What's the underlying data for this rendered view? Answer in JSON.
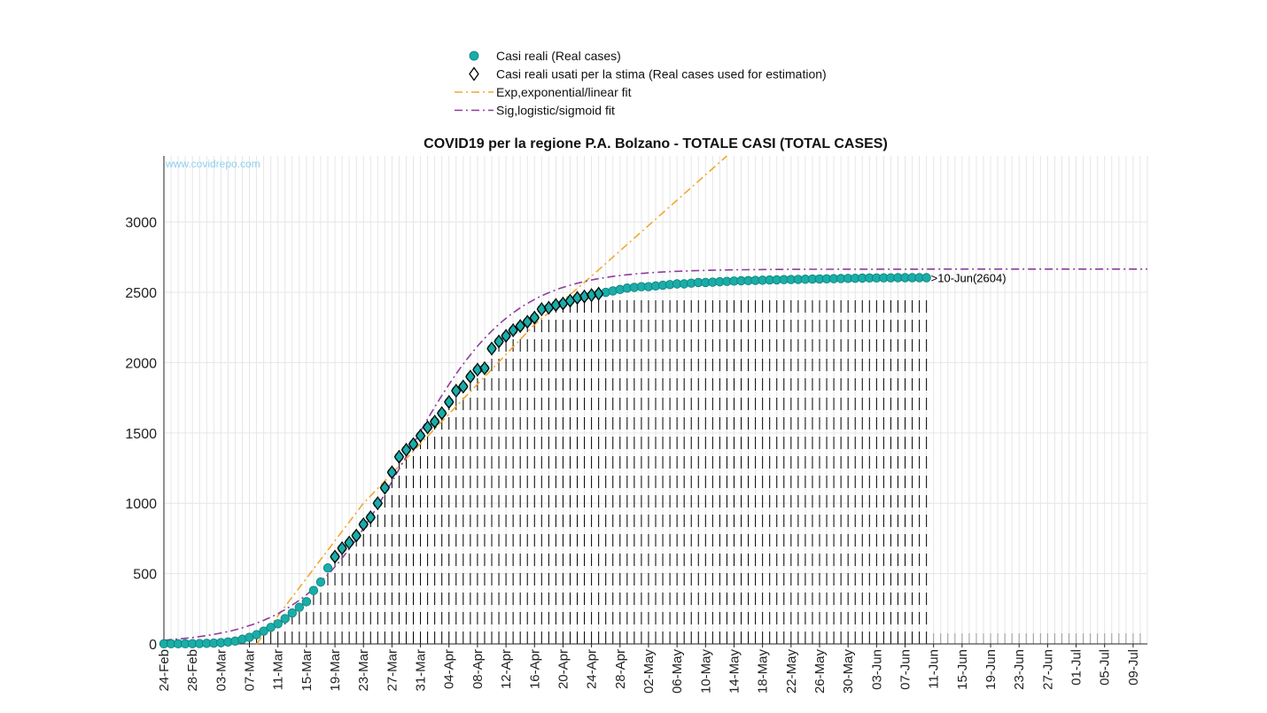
{
  "chart_data": {
    "type": "line",
    "title": "COVID19 per la regione P.A. Bolzano - TOTALE CASI (TOTAL CASES)",
    "watermark": "www.covidrepo.com",
    "xlabel": "",
    "ylabel": "",
    "x_start_date": "2020-02-24",
    "xlim": [
      "2020-02-24",
      "2020-07-11"
    ],
    "ylim": [
      0,
      3470
    ],
    "yticks": [
      0,
      500,
      1000,
      1500,
      2000,
      2500,
      3000
    ],
    "xtick_labels": [
      "24-Feb",
      "28-Feb",
      "03-Mar",
      "07-Mar",
      "11-Mar",
      "15-Mar",
      "19-Mar",
      "23-Mar",
      "27-Mar",
      "31-Mar",
      "04-Apr",
      "08-Apr",
      "12-Apr",
      "16-Apr",
      "20-Apr",
      "24-Apr",
      "28-Apr",
      "02-May",
      "06-May",
      "10-May",
      "14-May",
      "18-May",
      "22-May",
      "26-May",
      "30-May",
      "03-Jun",
      "07-Jun",
      "11-Jun",
      "15-Jun",
      "19-Jun",
      "23-Jun",
      "27-Jun",
      "01-Jul",
      "05-Jul",
      "09-Jul"
    ],
    "grid": true,
    "legend_position": "top-center",
    "annotation": ">10-Jun(2604)",
    "series": [
      {
        "name": "Casi reali (Real cases)",
        "kind": "scatter-circle",
        "color": "#1aada8",
        "values": [
          1,
          1,
          1,
          1,
          2,
          3,
          4,
          6,
          9,
          14,
          20,
          33,
          47,
          66,
          91,
          118,
          143,
          180,
          220,
          260,
          300,
          380,
          440,
          540,
          620,
          680,
          720,
          770,
          850,
          900,
          1000,
          1110,
          1220,
          1330,
          1380,
          1420,
          1480,
          1540,
          1580,
          1640,
          1720,
          1800,
          1830,
          1900,
          1950,
          1960,
          2100,
          2150,
          2190,
          2230,
          2260,
          2290,
          2320,
          2380,
          2390,
          2410,
          2420,
          2440,
          2460,
          2470,
          2480,
          2490,
          2500,
          2510,
          2520,
          2530,
          2535,
          2540,
          2540,
          2545,
          2550,
          2555,
          2560,
          2560,
          2565,
          2570,
          2570,
          2572,
          2575,
          2578,
          2580,
          2582,
          2583,
          2585,
          2586,
          2588,
          2589,
          2590,
          2591,
          2592,
          2593,
          2594,
          2595,
          2596,
          2597,
          2598,
          2599,
          2600,
          2601,
          2602,
          2602,
          2603,
          2603,
          2604,
          2604,
          2604,
          2604,
          2604
        ]
      },
      {
        "name": "Casi reali usati per la stima (Real cases used for estimation)",
        "kind": "scatter-diamond",
        "color": "#000000",
        "start_day": 24,
        "end_day": 61
      },
      {
        "name": "Exp,exponential/linear fit",
        "kind": "line-dashdot",
        "color": "#f0a830",
        "points": [
          [
            13,
            0
          ],
          [
            28,
            1000
          ],
          [
            52,
            2270
          ],
          [
            59,
            2570
          ],
          [
            79,
            3470
          ]
        ]
      },
      {
        "name": "Sig,logistic/sigmoid fit",
        "kind": "line-dashdot",
        "color": "#8e3c9e",
        "logistic": {
          "K": 2665,
          "r": 0.135,
          "t0": 34
        }
      }
    ]
  }
}
